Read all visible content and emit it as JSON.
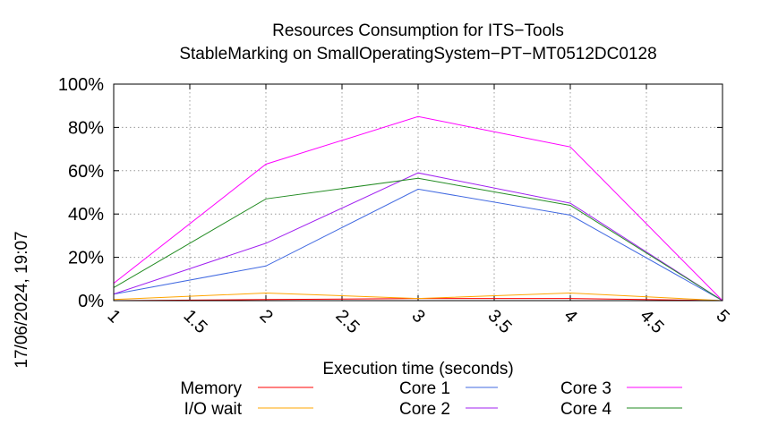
{
  "chart_data": {
    "type": "line",
    "title": "Resources Consumption for ITS−Tools",
    "subtitle": "StableMarking on SmallOperatingSystem−PT−MT0512DC0128",
    "xlabel": "Execution time (seconds)",
    "ylabel": "",
    "xlim": [
      1,
      5
    ],
    "ylim": [
      0,
      100
    ],
    "x_ticks": [
      "1",
      "1.5",
      "2",
      "2.5",
      "3",
      "3.5",
      "4",
      "4.5",
      "5"
    ],
    "y_ticks": [
      "0%",
      "20%",
      "40%",
      "60%",
      "80%",
      "100%"
    ],
    "grid": true,
    "legend_position": "bottom",
    "x": [
      1,
      2,
      3,
      4,
      5
    ],
    "series": [
      {
        "name": "Memory",
        "color": "#ff0000",
        "values": [
          0,
          0.5,
          1,
          1,
          0
        ]
      },
      {
        "name": "I/O wait",
        "color": "#ffa500",
        "values": [
          0.5,
          3.5,
          1,
          3.5,
          0
        ]
      },
      {
        "name": "Core 1",
        "color": "#4169e1",
        "values": [
          3,
          16,
          51.5,
          39.5,
          0
        ]
      },
      {
        "name": "Core 2",
        "color": "#a020f0",
        "values": [
          3,
          26.5,
          59,
          45,
          0
        ]
      },
      {
        "name": "Core 3",
        "color": "#ff00ff",
        "values": [
          8,
          63,
          85,
          71,
          0
        ]
      },
      {
        "name": "Core 4",
        "color": "#228b22",
        "values": [
          6,
          47,
          56.5,
          44,
          0
        ]
      }
    ]
  },
  "timestamp": "17/06/2024, 19:07"
}
